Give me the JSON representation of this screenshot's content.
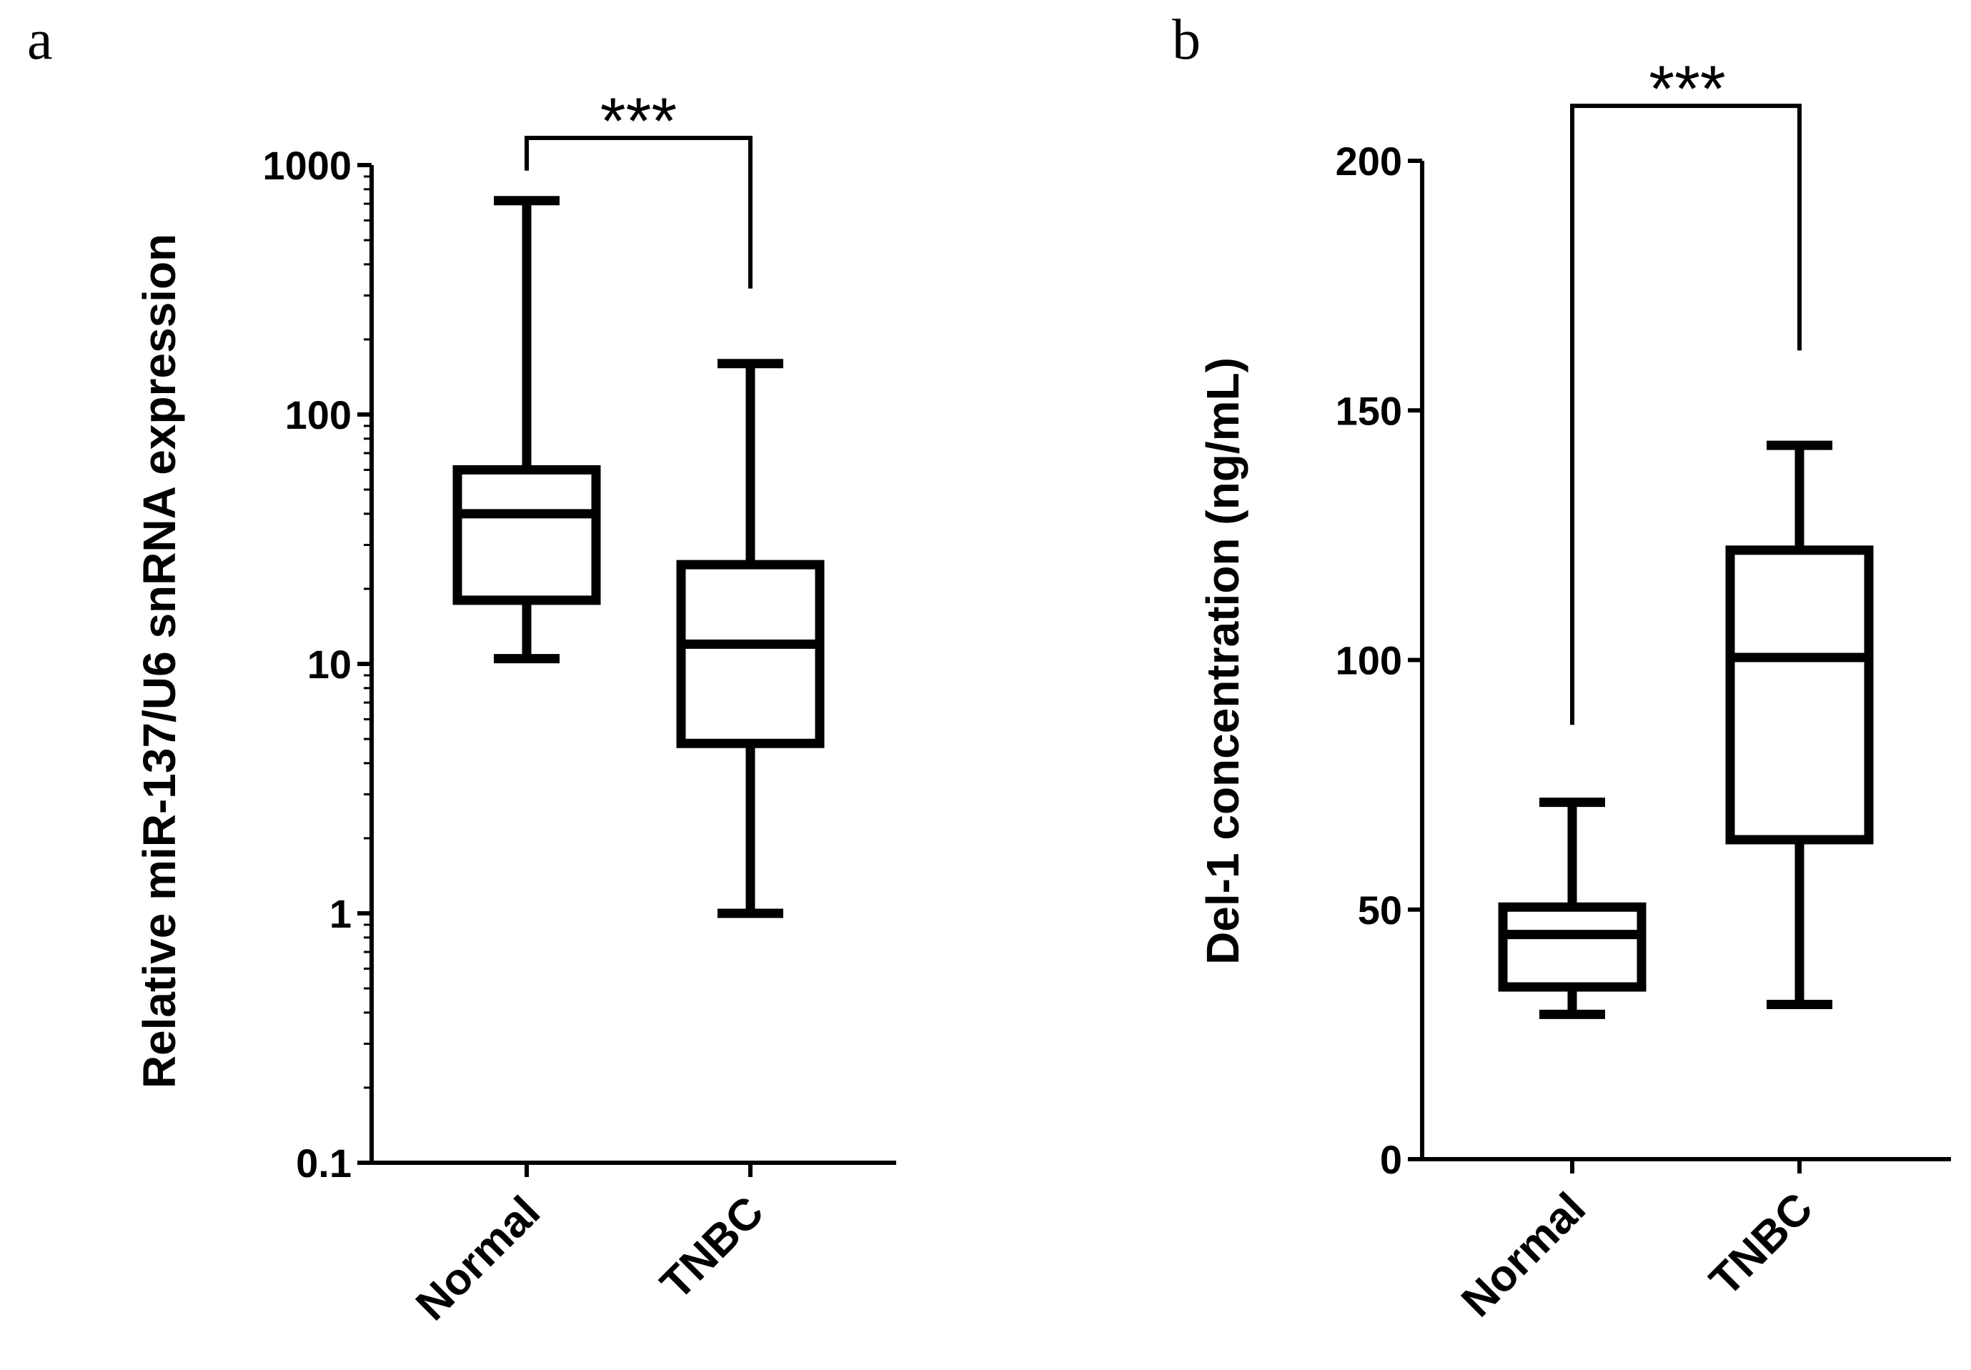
{
  "chart_data": [
    {
      "panel": "a",
      "type": "box",
      "scale": "log",
      "ylabel": "Relative miR-137/U6 snRNA expression",
      "ylim": [
        0.1,
        1000
      ],
      "ticks": [
        {
          "value": 0.1,
          "label": "0.1"
        },
        {
          "value": 1,
          "label": "1"
        },
        {
          "value": 10,
          "label": "10"
        },
        {
          "value": 100,
          "label": "100"
        },
        {
          "value": 1000,
          "label": "1000"
        }
      ],
      "categories": [
        "Normal",
        "TNBC"
      ],
      "boxes": [
        {
          "name": "Normal",
          "min": 10.5,
          "q1": 18,
          "median": 40,
          "q3": 60,
          "max": 720
        },
        {
          "name": "TNBC",
          "min": 1.0,
          "q1": 4.8,
          "median": 12,
          "q3": 25,
          "max": 160
        }
      ],
      "significance": {
        "label": "***",
        "from": "Normal",
        "to": "TNBC",
        "level": 1000,
        "left_end": 950,
        "right_end": 320
      }
    },
    {
      "panel": "b",
      "type": "box",
      "scale": "linear",
      "ylabel": "Del-1 concentration (ng/mL)",
      "ylim": [
        0,
        200
      ],
      "ticks": [
        {
          "value": 0,
          "label": "0"
        },
        {
          "value": 50,
          "label": "50"
        },
        {
          "value": 100,
          "label": "100"
        },
        {
          "value": 150,
          "label": "150"
        },
        {
          "value": 200,
          "label": "200"
        }
      ],
      "categories": [
        "Normal",
        "TNBC"
      ],
      "boxes": [
        {
          "name": "Normal",
          "min": 29,
          "q1": 34.5,
          "median": 45,
          "q3": 50.5,
          "max": 71.5
        },
        {
          "name": "TNBC",
          "min": 31,
          "q1": 64,
          "median": 100.5,
          "q3": 122,
          "max": 143
        }
      ],
      "significance": {
        "label": "***",
        "from": "Normal",
        "to": "TNBC",
        "level": 211,
        "left_end": 87,
        "right_end": 162
      }
    }
  ]
}
